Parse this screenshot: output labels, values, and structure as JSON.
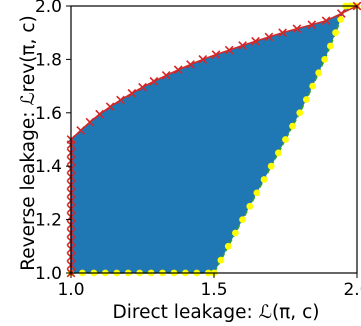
{
  "chart_data": {
    "type": "area",
    "title": "",
    "xlabel": "Direct leakage: ℒ(π, c)",
    "ylabel": "Reverse leakage: ℒrev(π, c)",
    "xlim": [
      1.0,
      2.0
    ],
    "ylim": [
      1.0,
      2.0
    ],
    "xticks": [
      1.0,
      1.5,
      2.0
    ],
    "yticks": [
      1.0,
      1.2,
      1.4,
      1.6,
      1.8,
      2.0
    ],
    "xtick_labels": [
      "1.0",
      "1.5",
      "2.0"
    ],
    "ytick_labels": [
      "1.0",
      "1.2",
      "1.4",
      "1.6",
      "1.8",
      "2.0"
    ],
    "grid": false,
    "legend": false,
    "colors": {
      "fill": "#1f77b4",
      "upper": "#d62728",
      "lower": "#ffff00",
      "lower_line": "#2ca02c"
    },
    "upper_boundary": {
      "marker": "x",
      "x": [
        1.0,
        1.0,
        1.0,
        1.0,
        1.0,
        1.0,
        1.0,
        1.0,
        1.0,
        1.0,
        1.0,
        1.0,
        1.0,
        1.0,
        1.0,
        1.0,
        1.0,
        1.0,
        1.034,
        1.066,
        1.1,
        1.137,
        1.173,
        1.213,
        1.25,
        1.29,
        1.333,
        1.375,
        1.418,
        1.461,
        1.507,
        1.553,
        1.6,
        1.645,
        1.692,
        1.74,
        1.79,
        1.842,
        1.892,
        1.945,
        2.0
      ],
      "y": [
        1.0,
        1.03,
        1.06,
        1.09,
        1.12,
        1.15,
        1.18,
        1.21,
        1.24,
        1.27,
        1.3,
        1.33,
        1.36,
        1.39,
        1.42,
        1.45,
        1.48,
        1.5,
        1.534,
        1.565,
        1.595,
        1.623,
        1.648,
        1.673,
        1.696,
        1.718,
        1.74,
        1.761,
        1.781,
        1.8,
        1.818,
        1.835,
        1.852,
        1.868,
        1.884,
        1.9,
        1.915,
        1.93,
        1.945,
        1.972,
        2.0
      ]
    },
    "lower_boundary": {
      "marker": "o",
      "x": [
        1.0,
        1.04,
        1.08,
        1.12,
        1.16,
        1.2,
        1.24,
        1.28,
        1.32,
        1.36,
        1.4,
        1.44,
        1.48,
        1.5,
        1.524,
        1.55,
        1.575,
        1.6,
        1.625,
        1.65,
        1.675,
        1.7,
        1.725,
        1.75,
        1.775,
        1.8,
        1.823,
        1.845,
        1.866,
        1.887,
        1.907,
        1.925,
        1.943,
        1.96,
        1.975,
        1.99,
        2.0
      ],
      "y": [
        1.0,
        1.0,
        1.0,
        1.0,
        1.0,
        1.0,
        1.0,
        1.0,
        1.0,
        1.0,
        1.0,
        1.0,
        1.0,
        1.0,
        1.048,
        1.1,
        1.15,
        1.2,
        1.25,
        1.3,
        1.35,
        1.4,
        1.45,
        1.5,
        1.55,
        1.6,
        1.65,
        1.7,
        1.75,
        1.8,
        1.85,
        1.9,
        1.95,
        2.0,
        2.0,
        2.0,
        2.0
      ]
    }
  }
}
